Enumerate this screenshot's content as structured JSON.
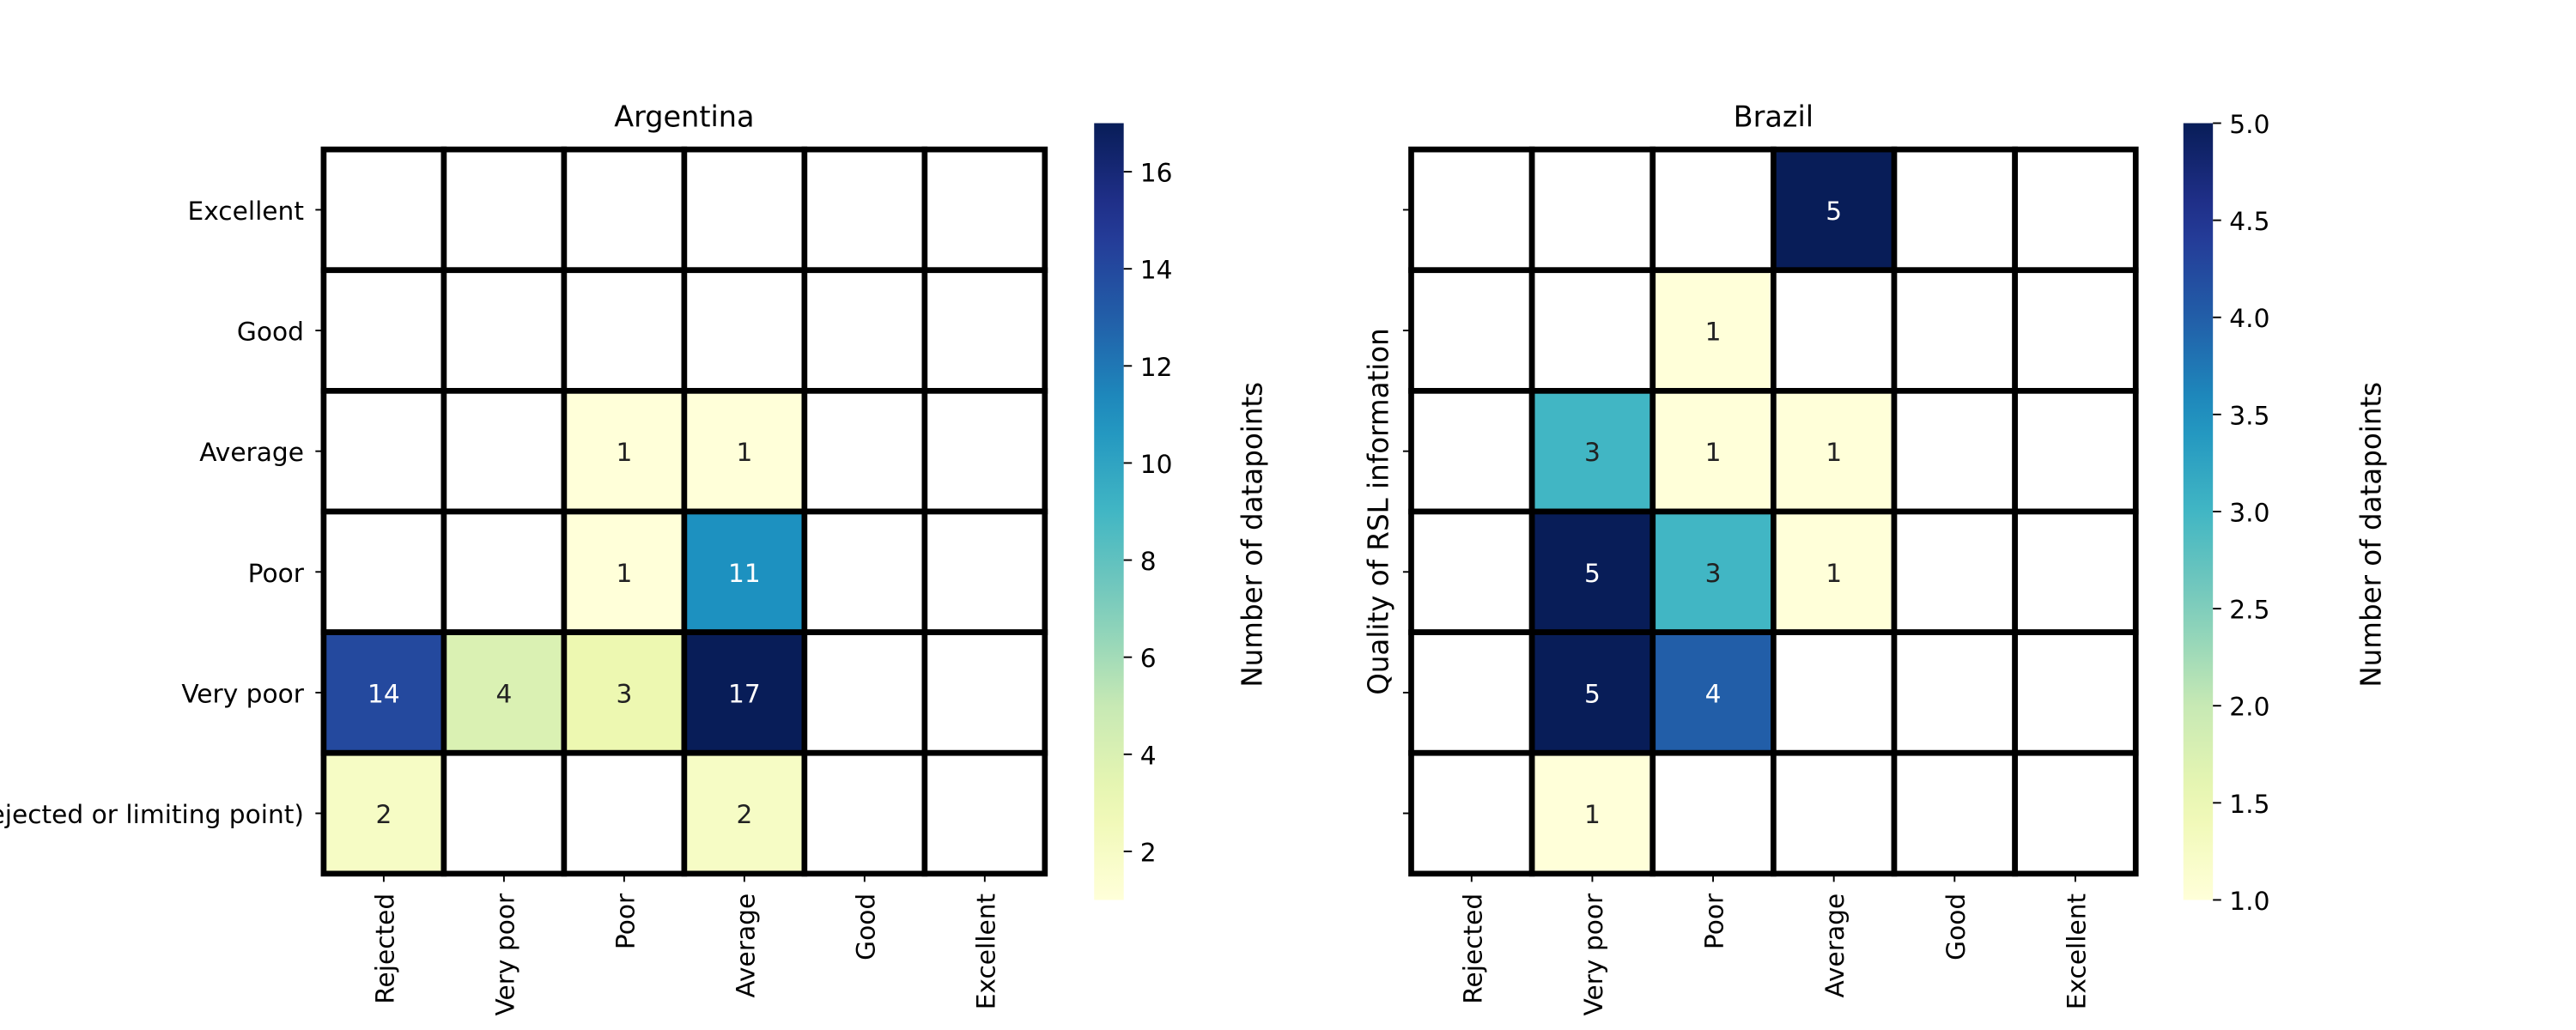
{
  "chart_data": [
    {
      "type": "heatmap",
      "title": "Argentina",
      "row_labels": [
        "Excellent",
        "Good",
        "Average",
        "Poor",
        "Very poor",
        "Not usable (Rejected or limiting point)"
      ],
      "col_labels": [
        "Rejected",
        "Very poor",
        "Poor",
        "Average",
        "Good",
        "Excellent"
      ],
      "values": [
        [
          null,
          null,
          null,
          null,
          null,
          null
        ],
        [
          null,
          null,
          null,
          null,
          null,
          null
        ],
        [
          null,
          null,
          1,
          1,
          null,
          null
        ],
        [
          null,
          null,
          1,
          11,
          null,
          null
        ],
        [
          14,
          4,
          3,
          17,
          null,
          null
        ],
        [
          2,
          null,
          null,
          2,
          null,
          null
        ]
      ],
      "ylabel": "",
      "colorbar": {
        "label": "Number of datapoints",
        "vmin": 1,
        "vmax": 17,
        "ticks": [
          2,
          4,
          6,
          8,
          10,
          12,
          14,
          16
        ],
        "tick_labels": [
          "2",
          "4",
          "6",
          "8",
          "10",
          "12",
          "14",
          "16"
        ],
        "colormap": "YlGnBu"
      }
    },
    {
      "type": "heatmap",
      "title": "Brazil",
      "row_labels": [
        "",
        "",
        "",
        "",
        "",
        ""
      ],
      "col_labels": [
        "Rejected",
        "Very poor",
        "Poor",
        "Average",
        "Good",
        "Excellent"
      ],
      "values": [
        [
          null,
          null,
          null,
          5,
          null,
          null
        ],
        [
          null,
          null,
          1,
          null,
          null,
          null
        ],
        [
          null,
          3,
          1,
          1,
          null,
          null
        ],
        [
          null,
          5,
          3,
          1,
          null,
          null
        ],
        [
          null,
          5,
          4,
          null,
          null,
          null
        ],
        [
          null,
          1,
          null,
          null,
          null,
          null
        ]
      ],
      "ylabel": "Quality of RSL information",
      "colorbar": {
        "label": "Number of datapoints",
        "vmin": 1,
        "vmax": 5,
        "ticks": [
          1,
          1.5,
          2,
          2.5,
          3,
          3.5,
          4,
          4.5,
          5
        ],
        "tick_labels": [
          "1.0",
          "1.5",
          "2.0",
          "2.5",
          "3.0",
          "3.5",
          "4.0",
          "4.5",
          "5.0"
        ],
        "colormap": "YlGnBu"
      }
    }
  ]
}
